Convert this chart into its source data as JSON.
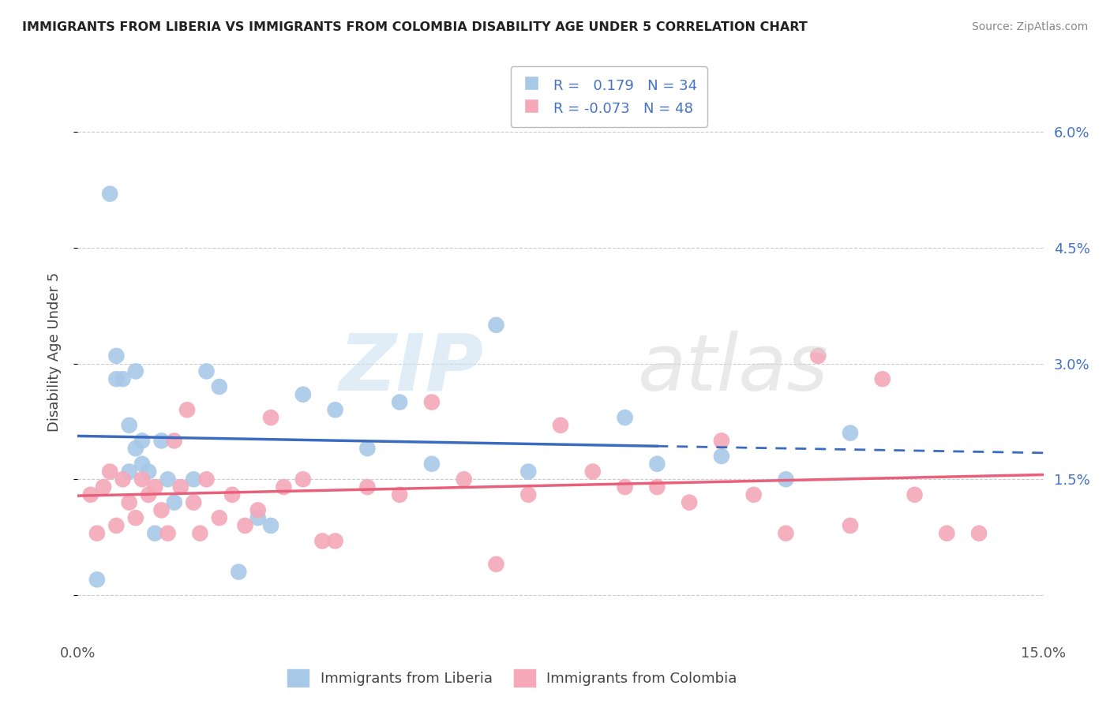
{
  "title": "IMMIGRANTS FROM LIBERIA VS IMMIGRANTS FROM COLOMBIA DISABILITY AGE UNDER 5 CORRELATION CHART",
  "source": "Source: ZipAtlas.com",
  "ylabel": "Disability Age Under 5",
  "xlim": [
    0.0,
    15.0
  ],
  "ylim": [
    -0.5,
    6.8
  ],
  "ytick_vals": [
    0.0,
    1.5,
    3.0,
    4.5,
    6.0
  ],
  "ytick_labels_right": [
    "",
    "1.5%",
    "3.0%",
    "4.5%",
    "6.0%"
  ],
  "xticks": [
    0.0,
    2.5,
    5.0,
    7.5,
    10.0,
    12.5,
    15.0
  ],
  "xtick_labels": [
    "0.0%",
    "",
    "",
    "",
    "",
    "",
    "15.0%"
  ],
  "liberia_color": "#a8c8e8",
  "colombia_color": "#f4a8b8",
  "liberia_line_color": "#3a6bbf",
  "colombia_line_color": "#e8607a",
  "legend_R1": "0.179",
  "legend_N1": "34",
  "legend_R2": "-0.073",
  "legend_N2": "48",
  "liberia_x": [
    0.3,
    0.5,
    0.6,
    0.7,
    0.8,
    0.8,
    0.9,
    1.0,
    1.0,
    1.1,
    1.2,
    1.3,
    1.4,
    1.5,
    1.8,
    2.0,
    2.2,
    2.5,
    2.8,
    3.0,
    3.5,
    4.0,
    4.5,
    5.0,
    5.5,
    6.5,
    7.0,
    8.5,
    9.0,
    10.0,
    11.0,
    12.0,
    0.6,
    0.9
  ],
  "liberia_y": [
    0.2,
    5.2,
    2.8,
    2.8,
    2.2,
    1.6,
    1.9,
    2.0,
    1.7,
    1.6,
    0.8,
    2.0,
    1.5,
    1.2,
    1.5,
    2.9,
    2.7,
    0.3,
    1.0,
    0.9,
    2.6,
    2.4,
    1.9,
    2.5,
    1.7,
    3.5,
    1.6,
    2.3,
    1.7,
    1.8,
    1.5,
    2.1,
    3.1,
    2.9
  ],
  "colombia_x": [
    0.2,
    0.3,
    0.4,
    0.5,
    0.6,
    0.7,
    0.8,
    0.9,
    1.0,
    1.1,
    1.2,
    1.3,
    1.4,
    1.5,
    1.6,
    1.7,
    1.8,
    1.9,
    2.0,
    2.2,
    2.4,
    2.6,
    2.8,
    3.0,
    3.2,
    3.5,
    3.8,
    4.0,
    4.5,
    5.0,
    5.5,
    6.0,
    6.5,
    7.0,
    7.5,
    8.0,
    8.5,
    9.0,
    9.5,
    10.0,
    10.5,
    11.0,
    11.5,
    12.0,
    12.5,
    13.0,
    13.5,
    14.0
  ],
  "colombia_y": [
    1.3,
    0.8,
    1.4,
    1.6,
    0.9,
    1.5,
    1.2,
    1.0,
    1.5,
    1.3,
    1.4,
    1.1,
    0.8,
    2.0,
    1.4,
    2.4,
    1.2,
    0.8,
    1.5,
    1.0,
    1.3,
    0.9,
    1.1,
    2.3,
    1.4,
    1.5,
    0.7,
    0.7,
    1.4,
    1.3,
    2.5,
    1.5,
    0.4,
    1.3,
    2.2,
    1.6,
    1.4,
    1.4,
    1.2,
    2.0,
    1.3,
    0.8,
    3.1,
    0.9,
    2.8,
    1.3,
    0.8,
    0.8
  ],
  "liberia_line_solid_end": 9.0,
  "tick_color": "#555555",
  "grid_color": "#cccccc",
  "right_tick_color": "#4472c4"
}
